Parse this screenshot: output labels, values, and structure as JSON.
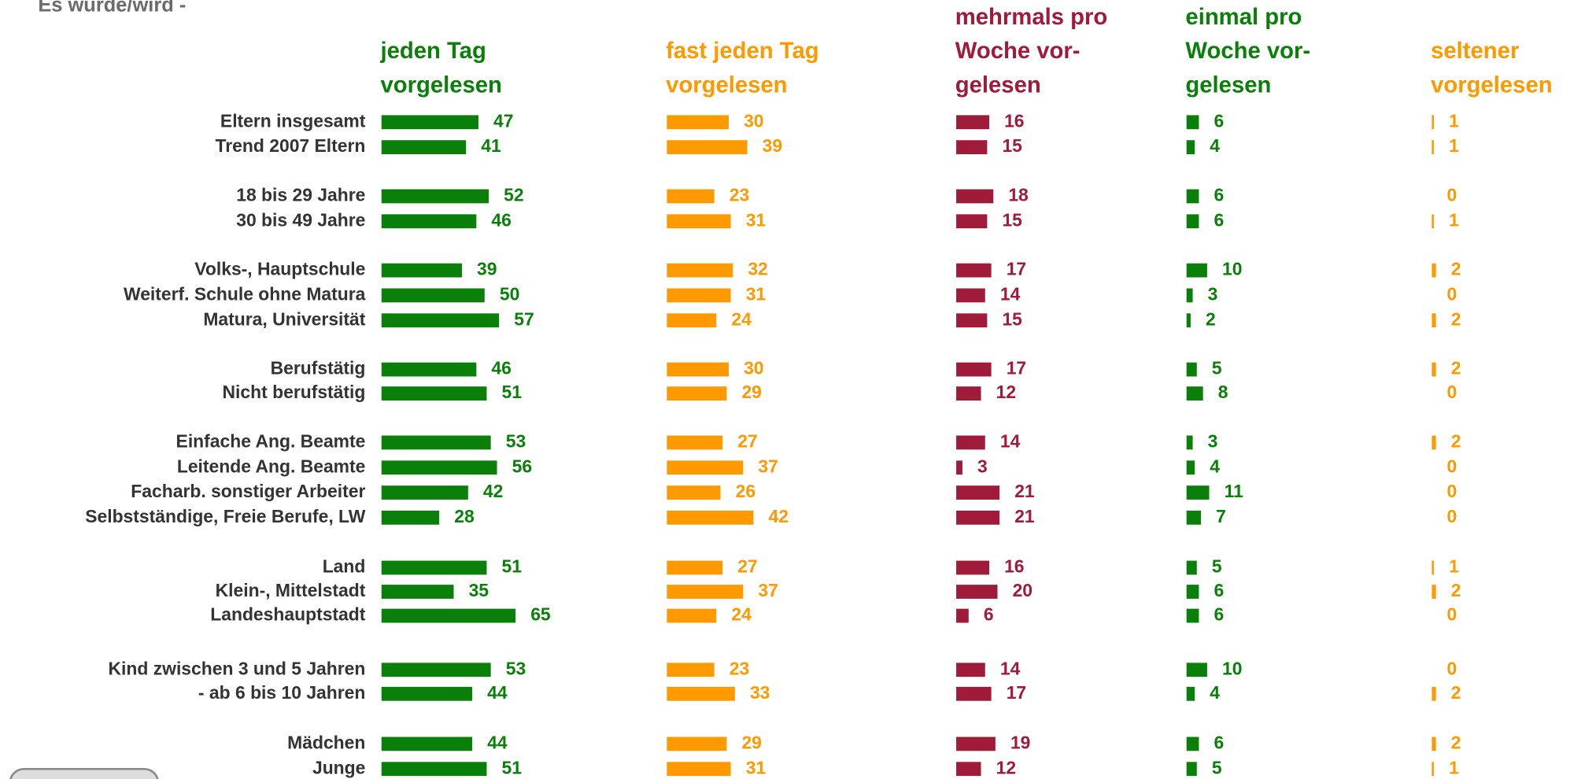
{
  "chart_data": {
    "type": "bar",
    "orientation": "horizontal",
    "title": "Es wurde/wird -",
    "categories": [
      "Eltern insgesamt",
      "Trend 2007 Eltern",
      "18 bis 29 Jahre",
      "30 bis 49 Jahre",
      "Volks-, Hauptschule",
      "Weiterf. Schule ohne Matura",
      "Matura, Universität",
      "Berufstätig",
      "Nicht berufstätig",
      "Einfache Ang. Beamte",
      "Leitende Ang. Beamte",
      "Facharb. sonstiger Arbeiter",
      "Selbstständige, Freie Berufe, LW",
      "Land",
      "Klein-, Mittelstadt",
      "Landeshauptstadt",
      "Kind zwischen 3 und 5 Jahren",
      "- ab 6 bis 10 Jahren",
      "Mädchen",
      "Junge"
    ],
    "series": [
      {
        "name": "jeden Tag\nvorgelesen",
        "color": "#0a800a",
        "values": [
          47,
          41,
          52,
          46,
          39,
          50,
          57,
          46,
          51,
          53,
          56,
          42,
          28,
          51,
          35,
          65,
          53,
          44,
          44,
          51
        ]
      },
      {
        "name": "fast jeden Tag\nvorgelesen",
        "color": "#ff9900",
        "values": [
          30,
          39,
          23,
          31,
          32,
          31,
          24,
          30,
          29,
          27,
          37,
          26,
          42,
          27,
          37,
          24,
          23,
          33,
          29,
          31
        ]
      },
      {
        "name": "mehrmals pro\nWoche vor-\ngelesen",
        "color": "#a01a3a",
        "values": [
          16,
          15,
          18,
          15,
          17,
          14,
          15,
          17,
          12,
          14,
          3,
          21,
          21,
          16,
          20,
          6,
          14,
          17,
          19,
          12
        ]
      },
      {
        "name": "einmal pro\nWoche vor-\ngelesen",
        "color": "#0a800a",
        "values": [
          6,
          4,
          6,
          6,
          10,
          3,
          2,
          5,
          8,
          3,
          4,
          11,
          7,
          5,
          6,
          6,
          10,
          4,
          6,
          5
        ]
      },
      {
        "name": "seltener\nvorgelesen",
        "color": "#ff9900",
        "values": [
          1,
          1,
          0,
          1,
          2,
          0,
          2,
          2,
          0,
          2,
          0,
          0,
          0,
          1,
          2,
          0,
          0,
          2,
          2,
          1
        ]
      }
    ]
  }
}
